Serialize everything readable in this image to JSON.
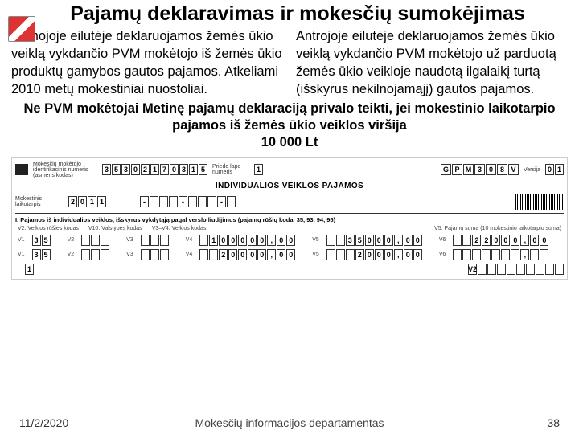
{
  "title": "Pajamų deklaravimas ir mokesčių sumokėjimas",
  "col_left": "Pirmojoje eilutėje deklaruojamos žemės ūkio veiklą vykdančio PVM mokėtojo iš žemės ūkio produktų gamybos gautos pajamos. Atkeliami 2010 metų mokestiniai nuostoliai.",
  "col_right": "Antrojoje eilutėje deklaruojamos žemės ūkio veiklą vykdančio PVM mokėtojo už parduotą žemės ūkio veikloje naudotą ilgalaikį turtą (išskyrus nekilnojamąjį) gautos pajamos.",
  "note_line1": "Ne PVM mokėtojai Metinę pajamų deklaraciją privalo teikti, jei mokestinio laikotarpio pajamos iš žemės ūkio veiklos viršija",
  "note_line2": "10 000 Lt",
  "form": {
    "label_id": "Mokesčių mokėtojo identifikacinis numeris (asmens kodas)",
    "id_digits": [
      "3",
      "5",
      "3",
      "0",
      "2",
      "1",
      "7",
      "0",
      "3",
      "1",
      "5"
    ],
    "pusl_label": "Priedo lapo numeris",
    "pusl": [
      "1"
    ],
    "top_letters": [
      "G",
      "P",
      "M",
      "3",
      "0",
      "8",
      "V"
    ],
    "versija_label": "Versija",
    "versija": [
      "0",
      "1"
    ],
    "center": "INDIVIDUALIOS VEIKLOS PAJAMOS",
    "period_label": "Mokestinis laikotarpis",
    "period": [
      "2",
      "0",
      "1",
      "1"
    ],
    "dash_line": [
      "-",
      "",
      "",
      "",
      "-",
      "",
      "",
      "",
      "-",
      ""
    ],
    "section": "I. Pajamos iš individualios veiklos, išskyrus vykdytąją pagal verslo liudijimus (pajamų rūšių kodai 35, 93, 94, 95)",
    "sub_a": "V2. Veiklos rūšies kodas",
    "sub_b": "V10. Valstybės kodas",
    "sub_c": "V3–V4. Veiklos kodas",
    "sub_d": "V5. Pajamų suma (10 mokestinio laikotarpio suma)",
    "row1": {
      "v1": [
        "3",
        "5"
      ],
      "v2": [
        "",
        "",
        ""
      ],
      "v3": [
        "",
        "",
        ""
      ],
      "v4": [
        "",
        "1",
        "0",
        "0",
        "0",
        "0",
        "0",
        ",",
        "0",
        "0"
      ],
      "v5": [
        "",
        "",
        "3",
        "5",
        "0",
        "0",
        "0",
        ",",
        "0",
        "0"
      ],
      "v6": [
        "",
        "",
        "2",
        "2",
        "0",
        "0",
        "0",
        ",",
        "0",
        "0"
      ]
    },
    "row2": {
      "v1": [
        "3",
        "5"
      ],
      "v2": [
        "",
        "",
        ""
      ],
      "v3": [
        "",
        "",
        ""
      ],
      "v4": [
        "",
        "",
        "2",
        "0",
        "0",
        "0",
        "0",
        ",",
        "0",
        "0"
      ],
      "v5": [
        "",
        "",
        "",
        "2",
        "0",
        "0",
        "0",
        ",",
        "0",
        "0"
      ],
      "v6": [
        "",
        "",
        "",
        "",
        "",
        "",
        "",
        ",",
        "",
        ""
      ]
    },
    "row3_left": [
      "1"
    ]
  },
  "footer": {
    "date": "11/2/2020",
    "dept": "Mokesčių informacijos departamentas",
    "page": "38"
  }
}
